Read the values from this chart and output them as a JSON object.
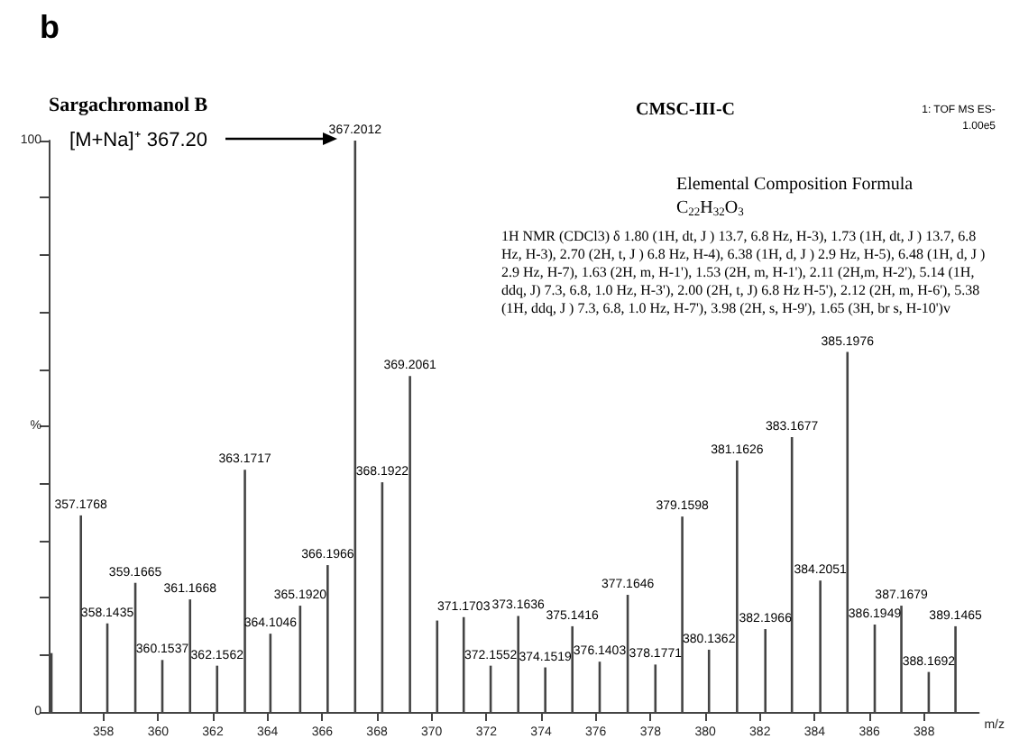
{
  "chart_data": {
    "type": "bar",
    "title": "Sargachromanol B",
    "subtitle": "CMSC-III-C",
    "xlabel": "m/z",
    "x": [
      356.1,
      357.1768,
      358.1435,
      359.1665,
      360.1537,
      361.1668,
      362.1562,
      363.1717,
      364.1046,
      365.192,
      366.1966,
      367.2012,
      368.1922,
      369.2061,
      370.2,
      371.1703,
      372.1552,
      373.1636,
      374.1519,
      375.1416,
      376.1403,
      377.1646,
      378.1771,
      379.1598,
      380.1362,
      381.1626,
      382.1966,
      383.1677,
      384.2051,
      385.1976,
      386.1949,
      387.1679,
      388.1692,
      389.1465
    ],
    "values": [
      10.3,
      34.4,
      15.5,
      22.6,
      9.1,
      19.7,
      8.1,
      42.4,
      13.7,
      18.6,
      25.7,
      100,
      40.2,
      58.8,
      16,
      16.6,
      8.1,
      16.8,
      7.8,
      15,
      8.8,
      20.5,
      8.3,
      34.2,
      10.9,
      44,
      14.5,
      48.1,
      23,
      63,
      15.3,
      18.6,
      7,
      15
    ],
    "color": "#444444",
    "xlim": [
      356,
      390
    ],
    "xticks": [
      358,
      360,
      362,
      364,
      366,
      368,
      370,
      372,
      374,
      376,
      378,
      380,
      382,
      384,
      386,
      388
    ],
    "ylim": [
      0,
      100
    ],
    "yticks": [
      0,
      {
        "value": 10,
        "label": null
      },
      {
        "value": 20,
        "label": null
      },
      {
        "value": 30,
        "label": null
      },
      {
        "value": 40,
        "label": null
      },
      {
        "value": 50,
        "label": "%"
      },
      {
        "value": 60,
        "label": null
      },
      {
        "value": 70,
        "label": null
      },
      {
        "value": 80,
        "label": null
      },
      {
        "value": 90,
        "label": null
      },
      100
    ],
    "grid": false,
    "annotations": [
      "b",
      "1: TOF MS ES-",
      "1.00e5",
      "Elemental Composition Formula",
      "C$_{22}$H$_{32}$O$_{3}$",
      "1H NMR (CDCl3) δ 1.80 (1H, dt, J ) 13.7, 6.8 Hz, H-3), 1.73 (1H, dt, J ) 13.7, 6.8 Hz, H-3), 2.70 (2H, t, J ) 6.8 Hz, H-4), 6.38 (1H, d, J ) 2.9 Hz, H-5), 6.48 (1H, d, J ) 2.9 Hz, H-7), 1.63 (2H, m, H-1'), 1.53 (2H, m, H-1'), 2.11 (2H,m, H-2'), 5.14 (1H, ddq, J) 7.3, 6.8, 1.0 Hz, H-3'), 2.00 (2H, t, J) 6.8 Hz H-5'), 2.12 (2H, m, H-6'), 5.38 (1H, ddq, J ) 7.3, 6.8, 1.0 Hz, H-7'), 3.98 (2H, s, H-9'), 1.65 (3H, br s, H-10')v",
      "[M+Na]⁺ 367.20",
      {
        "text": "357.1768",
        "x": 357.1768,
        "y": 34.4
      },
      {
        "text": "358.1435",
        "x": 358.1435,
        "y": 15.5
      },
      {
        "text": "359.1665",
        "x": 359.1665,
        "y": 22.6
      },
      {
        "text": "360.1537",
        "x": 360.1537,
        "y": 9.1
      },
      {
        "text": "361.1668",
        "x": 361.1668,
        "y": 19.7
      },
      {
        "text": "362.1562",
        "x": 362.1562,
        "y": 8.1
      },
      {
        "text": "363.1717",
        "x": 363.1717,
        "y": 42.4
      },
      {
        "text": "364.1046",
        "x": 364.1046,
        "y": 13.7
      },
      {
        "text": "365.1920",
        "x": 365.192,
        "y": 18.6
      },
      {
        "text": "366.1966",
        "x": 366.1966,
        "y": 25.7
      },
      {
        "text": "367.2012",
        "x": 367.2012,
        "y": 100
      },
      {
        "text": "368.1922",
        "x": 368.1922,
        "y": 40.2
      },
      {
        "text": "369.2061",
        "x": 369.2061,
        "y": 58.8
      },
      {
        "text": "371.1703",
        "x": 371.1703,
        "y": 16.6
      },
      {
        "text": "372.1552",
        "x": 372.1552,
        "y": 8.1
      },
      {
        "text": "373.1636",
        "x": 373.1636,
        "y": 16.8
      },
      {
        "text": "374.1519",
        "x": 374.1519,
        "y": 7.8
      },
      {
        "text": "375.1416",
        "x": 375.1416,
        "y": 15
      },
      {
        "text": "376.1403",
        "x": 376.1403,
        "y": 8.8
      },
      {
        "text": "377.1646",
        "x": 377.1646,
        "y": 20.5
      },
      {
        "text": "378.1771",
        "x": 378.1771,
        "y": 8.3
      },
      {
        "text": "379.1598",
        "x": 379.1598,
        "y": 34.2
      },
      {
        "text": "380.1362",
        "x": 380.1362,
        "y": 10.9
      },
      {
        "text": "381.1626",
        "x": 381.1626,
        "y": 44
      },
      {
        "text": "382.1966",
        "x": 382.1966,
        "y": 14.5
      },
      {
        "text": "383.1677",
        "x": 383.1677,
        "y": 48.1
      },
      {
        "text": "384.2051",
        "x": 384.2051,
        "y": 23
      },
      {
        "text": "385.1976",
        "x": 385.1976,
        "y": 63
      },
      {
        "text": "386.1949",
        "x": 386.1949,
        "y": 15.3
      },
      {
        "text": "387.1679",
        "x": 387.1679,
        "y": 18.6
      },
      {
        "text": "388.1692",
        "x": 388.1692,
        "y": 7
      },
      {
        "text": "389.1465",
        "x": 389.1465,
        "y": 15
      }
    ]
  }
}
